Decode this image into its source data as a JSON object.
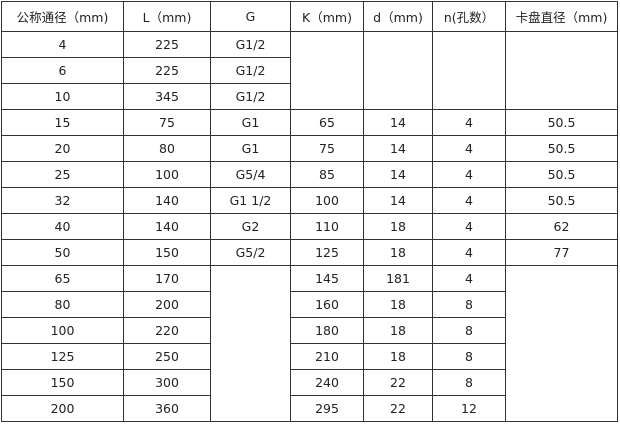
{
  "headers": [
    "公称通径（mm)",
    "L（mm)",
    "G",
    "K（mm)",
    "d（mm)",
    "n(孔数）",
    "卡盘直径（mm)"
  ],
  "rows": [
    [
      "4",
      "225",
      "G1/2"
    ],
    [
      "6",
      "225",
      "G1/2"
    ],
    [
      "10",
      "345",
      "G1/2"
    ],
    [
      "15",
      "75",
      "G1",
      "65",
      "14",
      "4",
      "50.5"
    ],
    [
      "20",
      "80",
      "G1",
      "75",
      "14",
      "4",
      "50.5"
    ],
    [
      "25",
      "100",
      "G5/4",
      "85",
      "14",
      "4",
      "50.5"
    ],
    [
      "32",
      "140",
      "G1  1/2",
      "100",
      "14",
      "4",
      "50.5"
    ],
    [
      "40",
      "140",
      "G2",
      "110",
      "18",
      "4",
      "62"
    ],
    [
      "50",
      "150",
      "G5/2",
      "125",
      "18",
      "4",
      "77"
    ],
    [
      "65",
      "170",
      "",
      "145",
      "181",
      "4"
    ],
    [
      "80",
      "200",
      "",
      "160",
      "18",
      "8"
    ],
    [
      "100",
      "220",
      "",
      "180",
      "18",
      "8"
    ],
    [
      "125",
      "250",
      "",
      "210",
      "18",
      "8"
    ],
    [
      "150",
      "300",
      "",
      "240",
      "22",
      "8"
    ],
    [
      "200",
      "360",
      "",
      "295",
      "22",
      "12"
    ]
  ]
}
